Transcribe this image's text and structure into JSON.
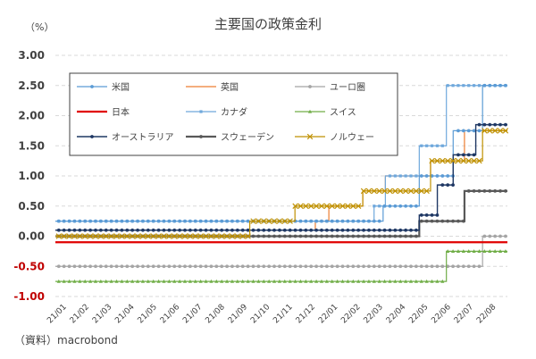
{
  "chart_data": {
    "type": "line",
    "title": "主要国の政策金利",
    "unit_label": "（%）",
    "source": "（資料）macrobond",
    "ylim": [
      -1.0,
      3.0
    ],
    "y_ticks": [
      "3.00",
      "2.50",
      "2.00",
      "1.50",
      "1.00",
      "0.50",
      "0.00",
      "-0.50",
      "-1.00"
    ],
    "x_labels": [
      "21/01",
      "21/02",
      "21/03",
      "21/04",
      "21/05",
      "21/06",
      "21/07",
      "21/08",
      "21/09",
      "21/10",
      "21/11",
      "21/12",
      "22/01",
      "22/02",
      "22/03",
      "22/04",
      "22/05",
      "22/06",
      "22/07",
      "22/08"
    ],
    "x_range": [
      0,
      20
    ],
    "series": [
      {
        "name": "米国",
        "color": "#5b9bd5",
        "width": 1.2,
        "marker": "circle",
        "steps": [
          [
            0,
            0.25
          ],
          [
            14.5,
            0.5
          ],
          [
            16.1,
            1.0
          ],
          [
            17.6,
            1.75
          ],
          [
            18.9,
            2.5
          ]
        ]
      },
      {
        "name": "英国",
        "color": "#ed7d31",
        "width": 1.2,
        "marker": "none",
        "steps": [
          [
            0,
            0.1
          ],
          [
            11.5,
            0.25
          ],
          [
            12.1,
            0.5
          ],
          [
            13.6,
            0.75
          ],
          [
            14.6,
            1.0
          ],
          [
            16.6,
            1.25
          ],
          [
            18.1,
            1.75
          ]
        ]
      },
      {
        "name": "ユーロ圏",
        "color": "#a5a5a5",
        "width": 1.2,
        "marker": "circle",
        "steps": [
          [
            0,
            -0.5
          ],
          [
            18.9,
            0.0
          ]
        ]
      },
      {
        "name": "日本",
        "color": "#e00000",
        "width": 2.2,
        "marker": "none",
        "steps": [
          [
            0,
            -0.1
          ]
        ]
      },
      {
        "name": "カナダ",
        "color": "#6fa8dc",
        "width": 1.2,
        "marker": "square",
        "steps": [
          [
            0,
            0.25
          ],
          [
            14.1,
            0.5
          ],
          [
            14.6,
            1.0
          ],
          [
            16.1,
            1.5
          ],
          [
            17.3,
            2.5
          ]
        ]
      },
      {
        "name": "スイス",
        "color": "#70ad47",
        "width": 1.2,
        "marker": "triangle",
        "steps": [
          [
            0,
            -0.75
          ],
          [
            17.3,
            -0.25
          ]
        ]
      },
      {
        "name": "オーストラリア",
        "color": "#1f3864",
        "width": 1.4,
        "marker": "circle",
        "steps": [
          [
            0,
            0.1
          ],
          [
            16.1,
            0.35
          ],
          [
            16.9,
            0.85
          ],
          [
            17.6,
            1.35
          ],
          [
            18.6,
            1.85
          ]
        ]
      },
      {
        "name": "スウェーデン",
        "color": "#595959",
        "width": 2.2,
        "marker": "circle",
        "steps": [
          [
            0,
            0.0
          ],
          [
            16.1,
            0.25
          ],
          [
            18.1,
            0.75
          ]
        ]
      },
      {
        "name": "ノルウェー",
        "color": "#bf9000",
        "width": 1.2,
        "marker": "x",
        "steps": [
          [
            0,
            0.0
          ],
          [
            8.6,
            0.25
          ],
          [
            10.6,
            0.5
          ],
          [
            13.6,
            0.75
          ],
          [
            16.6,
            1.25
          ],
          [
            18.9,
            1.75
          ]
        ]
      }
    ]
  }
}
